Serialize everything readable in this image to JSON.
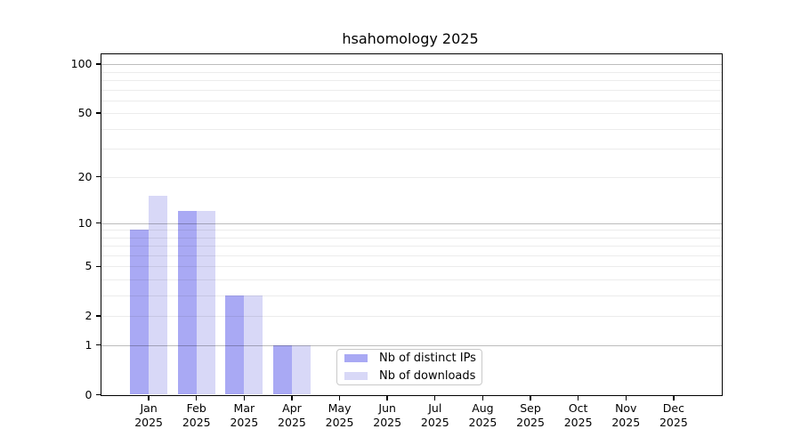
{
  "chart_data": {
    "type": "bar",
    "title": "hsahomology 2025",
    "categories": [
      "Jan",
      "Feb",
      "Mar",
      "Apr",
      "May",
      "Jun",
      "Jul",
      "Aug",
      "Sep",
      "Oct",
      "Nov",
      "Dec"
    ],
    "x_year_label": "2025",
    "series": [
      {
        "name": "Nb of distinct IPs",
        "color": "#a9a9f4",
        "values": [
          9,
          12,
          3,
          1,
          0,
          0,
          0,
          0,
          0,
          0,
          0,
          0
        ]
      },
      {
        "name": "Nb of downloads",
        "color": "#d8d8f7",
        "values": [
          15,
          12,
          3,
          1,
          0,
          0,
          0,
          0,
          0,
          0,
          0,
          0
        ]
      }
    ],
    "xlabel": "",
    "ylabel": "",
    "yscale": "log1p",
    "ylim": [
      0,
      115
    ],
    "yticks": [
      0,
      1,
      2,
      5,
      10,
      20,
      50,
      100
    ],
    "gridlines": {
      "major": [
        1,
        10,
        100
      ],
      "minor": [
        2,
        3,
        4,
        5,
        6,
        7,
        8,
        9,
        20,
        30,
        40,
        50,
        60,
        70,
        80,
        90
      ]
    },
    "grid_on": true,
    "legend_position": "lower center",
    "axis_color": "#000000"
  }
}
